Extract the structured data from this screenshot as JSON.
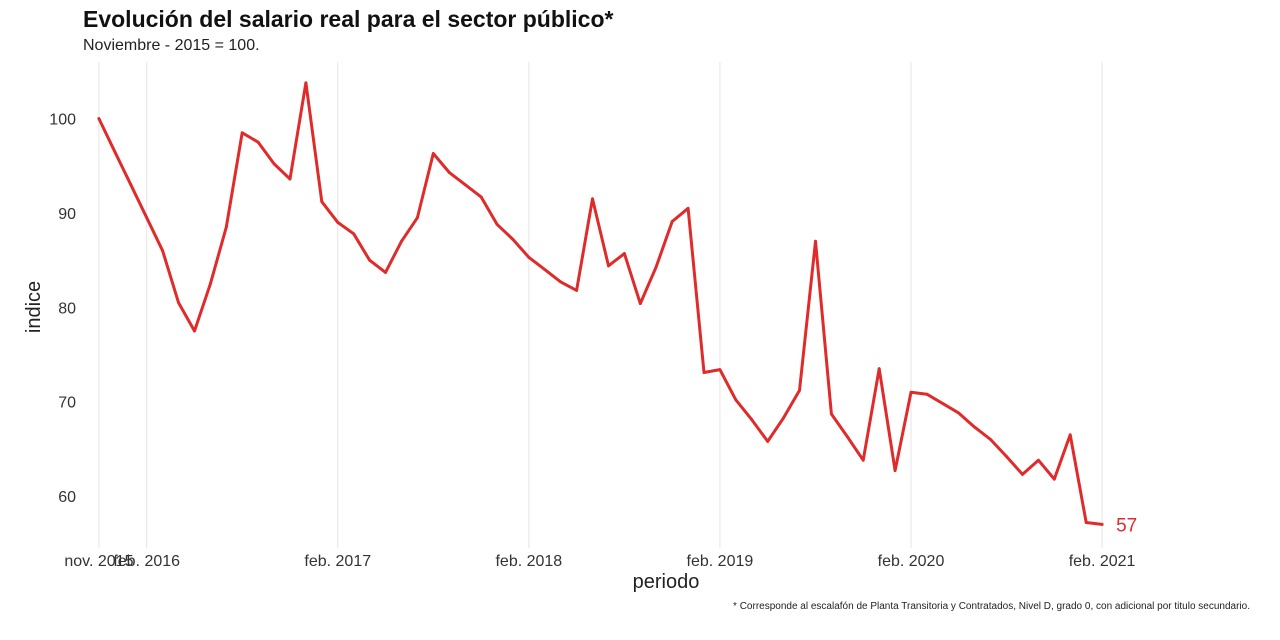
{
  "chart_data": {
    "type": "line",
    "title": "Evolución del salario real para el sector público*",
    "subtitle": "Noviembre - 2015 = 100.",
    "xlabel": "periodo",
    "ylabel": "indice",
    "footnote": "* Corresponde al escalafón de Planta Transitoria y Contratados, Nivel D, grado 0, con adicional por titulo secundario.",
    "grid": "vertical",
    "x_ticks": [
      {
        "date": "2015-11",
        "label": "nov. 2015"
      },
      {
        "date": "2016-02",
        "label": "feb. 2016"
      },
      {
        "date": "2017-02",
        "label": "feb. 2017"
      },
      {
        "date": "2018-02",
        "label": "feb. 2018"
      },
      {
        "date": "2019-02",
        "label": "feb. 2019"
      },
      {
        "date": "2020-02",
        "label": "feb. 2020"
      },
      {
        "date": "2021-02",
        "label": "feb. 2021"
      }
    ],
    "y_ticks": [
      60,
      70,
      80,
      90,
      100
    ],
    "ylim": [
      54.5,
      106
    ],
    "xlim": [
      "2015-10",
      "2021-03"
    ],
    "end_label": "57",
    "colors": {
      "line": "#e02b2b",
      "grid": "#e6e6e6"
    },
    "series": [
      {
        "x": [
          "2015-11",
          "2015-12",
          "2016-01",
          "2016-02",
          "2016-03",
          "2016-04",
          "2016-05",
          "2016-06",
          "2016-07",
          "2016-08",
          "2016-09",
          "2016-10",
          "2016-11",
          "2016-12",
          "2017-01",
          "2017-02",
          "2017-03",
          "2017-04",
          "2017-05",
          "2017-06",
          "2017-07",
          "2017-08",
          "2017-09",
          "2017-10",
          "2017-11",
          "2017-12",
          "2018-01",
          "2018-02",
          "2018-03",
          "2018-04",
          "2018-05",
          "2018-06",
          "2018-07",
          "2018-08",
          "2018-09",
          "2018-10",
          "2018-11",
          "2018-12",
          "2019-01",
          "2019-02",
          "2019-03",
          "2019-04",
          "2019-05",
          "2019-06",
          "2019-07",
          "2019-08",
          "2019-09",
          "2019-10",
          "2019-11",
          "2019-12",
          "2020-01",
          "2020-02",
          "2020-03",
          "2020-04",
          "2020-05",
          "2020-06",
          "2020-07",
          "2020-08",
          "2020-09",
          "2020-10",
          "2020-11",
          "2020-12",
          "2021-01",
          "2021-02"
        ],
        "values": [
          100,
          96.5,
          93,
          89.5,
          86,
          80.5,
          77.5,
          82.5,
          88.5,
          98.5,
          97.5,
          95.2,
          93.6,
          103.8,
          91.2,
          89,
          87.8,
          85,
          83.7,
          87,
          89.5,
          96.3,
          94.3,
          93,
          91.7,
          88.8,
          87.2,
          85.3,
          84,
          82.7,
          81.8,
          91.5,
          84.4,
          85.7,
          80.4,
          84.3,
          89.1,
          90.5,
          73.1,
          73.4,
          70.2,
          68.1,
          65.8,
          68.3,
          71.2,
          87,
          68.7,
          66.3,
          63.8,
          73.5,
          62.7,
          71,
          70.8,
          69.8,
          68.8,
          67.3,
          66,
          64.2,
          62.3,
          63.8,
          61.8,
          66.5,
          57.2,
          57
        ]
      }
    ]
  }
}
